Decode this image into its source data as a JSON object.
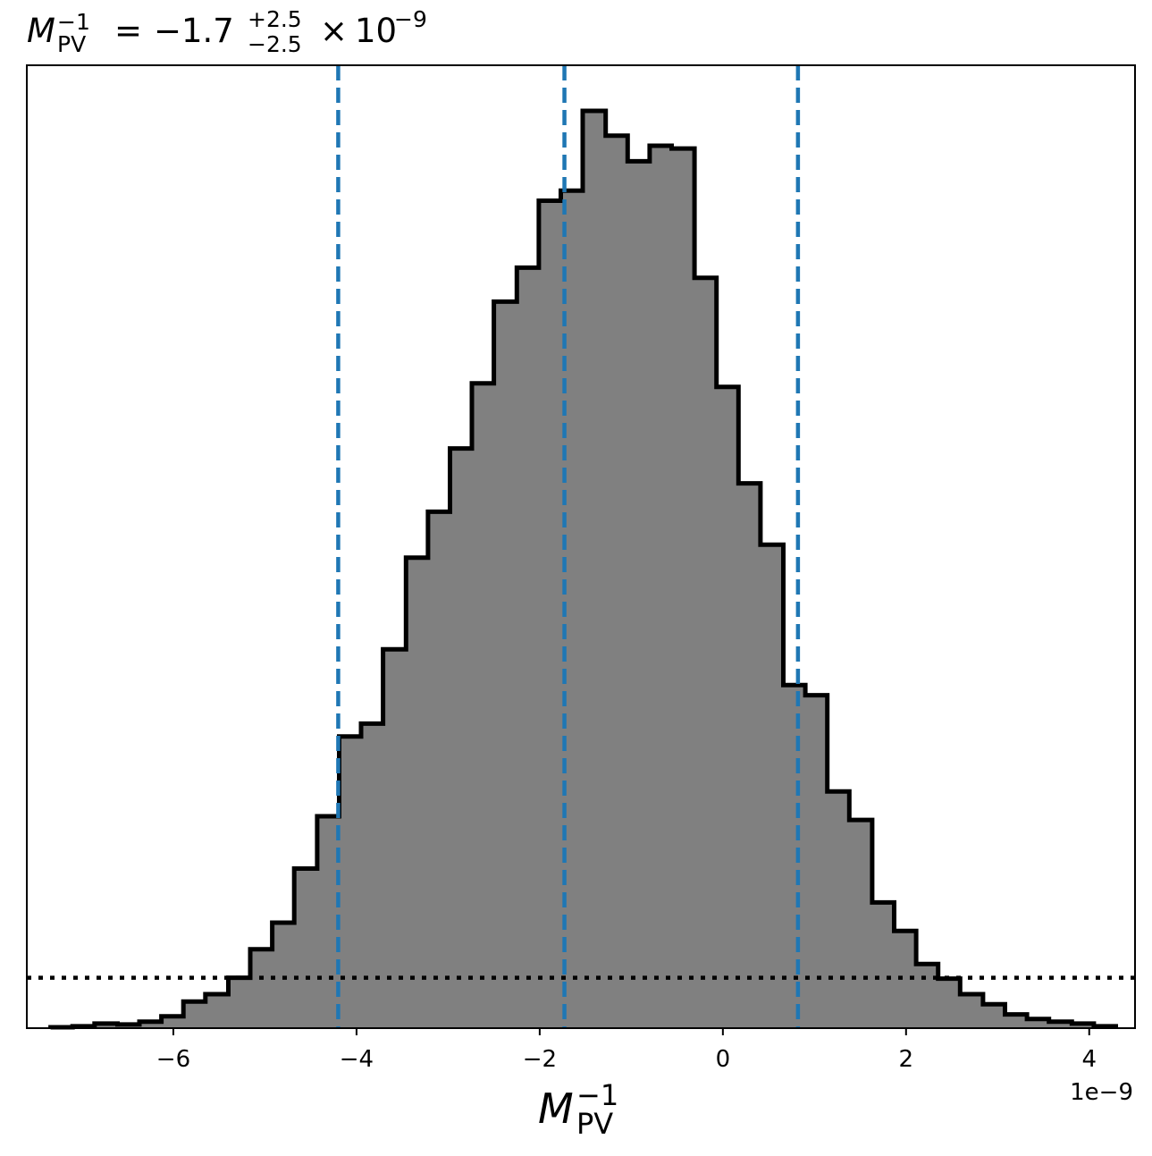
{
  "chart_data": {
    "type": "histogram",
    "title": {
      "symbol": "M",
      "sub": "PV",
      "sup": "−1",
      "equals": "=",
      "median": "−1.7",
      "plus": "+2.5",
      "minus": "−2.5",
      "times": "×",
      "base": "10",
      "exponent": "−9"
    },
    "xlabel": {
      "symbol": "M",
      "sub": "PV",
      "sup": "−1"
    },
    "ylabel": "",
    "x_offset_label": "1e−9",
    "x_scale": 1e-09,
    "xlim": [
      -7.6,
      4.5
    ],
    "ylim": [
      0,
      1.0
    ],
    "y_ticks_visible": false,
    "grid": false,
    "xticks": [
      -6,
      -4,
      -2,
      0,
      2,
      4
    ],
    "xtick_labels": [
      "−6",
      "−4",
      "−2",
      "0",
      "2",
      "4"
    ],
    "bin_edges": [
      -7.34,
      -7.1,
      -6.86,
      -6.61,
      -6.37,
      -6.13,
      -5.89,
      -5.65,
      -5.4,
      -5.16,
      -4.92,
      -4.68,
      -4.43,
      -4.19,
      -3.95,
      -3.71,
      -3.46,
      -3.22,
      -2.98,
      -2.74,
      -2.5,
      -2.25,
      -2.01,
      -1.77,
      -1.53,
      -1.28,
      -1.04,
      -0.8,
      -0.56,
      -0.31,
      -0.07,
      0.17,
      0.41,
      0.66,
      0.9,
      1.14,
      1.38,
      1.63,
      1.87,
      2.11,
      2.35,
      2.59,
      2.84,
      3.08,
      3.32,
      3.56,
      3.81,
      4.05,
      4.29
    ],
    "counts": [
      0.001,
      0.002,
      0.005,
      0.004,
      0.007,
      0.013,
      0.029,
      0.037,
      0.055,
      0.086,
      0.115,
      0.174,
      0.231,
      0.318,
      0.332,
      0.413,
      0.513,
      0.563,
      0.632,
      0.703,
      0.792,
      0.829,
      0.902,
      0.913,
      1.0,
      0.973,
      0.945,
      0.962,
      0.959,
      0.818,
      0.699,
      0.594,
      0.527,
      0.374,
      0.363,
      0.258,
      0.227,
      0.137,
      0.106,
      0.07,
      0.054,
      0.037,
      0.026,
      0.015,
      0.01,
      0.007,
      0.005,
      0.002
    ],
    "quantile_lines": [
      -4.2,
      -1.73,
      0.82
    ],
    "threshold_level": 0.055,
    "colors": {
      "fill": "#808080",
      "edge": "#000000",
      "quantile": "#1f77b4",
      "threshold": "#000000"
    }
  }
}
